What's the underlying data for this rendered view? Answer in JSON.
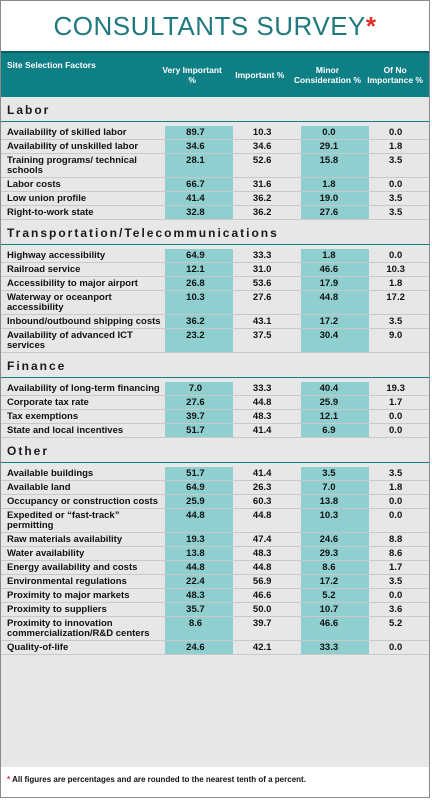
{
  "title": "CONSULTANTS SURVEY",
  "title_mark": "*",
  "colors": {
    "header_bg": "#0f7f86",
    "highlight": "#8fcfd0",
    "title": "#1f7a80",
    "asterisk": "#e0302a"
  },
  "columns": {
    "factor": "Site Selection Factors",
    "very": "Very Important %",
    "important": "Important %",
    "minor": "Minor Consideration %",
    "none": "Of No Importance %"
  },
  "sections": [
    {
      "name": "Labor",
      "rows": [
        {
          "label": "Availability of skilled labor",
          "very": "89.7",
          "important": "10.3",
          "minor": "0.0",
          "none": "0.0",
          "hl": [
            "very"
          ]
        },
        {
          "label": "Availability of unskilled labor",
          "very": "34.6",
          "important": "34.6",
          "minor": "29.1",
          "none": "1.8",
          "hl": [
            "very",
            "minor"
          ]
        },
        {
          "label": "Training programs/ technical schools",
          "very": "28.1",
          "important": "52.6",
          "minor": "15.8",
          "none": "3.5",
          "hl": []
        },
        {
          "label": "Labor costs",
          "very": "66.7",
          "important": "31.6",
          "minor": "1.8",
          "none": "0.0",
          "hl": []
        },
        {
          "label": "Low union profile",
          "very": "41.4",
          "important": "36.2",
          "minor": "19.0",
          "none": "3.5",
          "hl": []
        },
        {
          "label": "Right-to-work state",
          "very": "32.8",
          "important": "36.2",
          "minor": "27.6",
          "none": "3.5",
          "hl": []
        }
      ]
    },
    {
      "name": "Transportation/Telecommunications",
      "rows": [
        {
          "label": "Highway accessibility",
          "very": "64.9",
          "important": "33.3",
          "minor": "1.8",
          "none": "0.0"
        },
        {
          "label": "Railroad service",
          "very": "12.1",
          "important": "31.0",
          "minor": "46.6",
          "none": "10.3"
        },
        {
          "label": "Accessibility to major airport",
          "very": "26.8",
          "important": "53.6",
          "minor": "17.9",
          "none": "1.8"
        },
        {
          "label": "Waterway or oceanport accessibility",
          "very": "10.3",
          "important": "27.6",
          "minor": "44.8",
          "none": "17.2"
        },
        {
          "label": "Inbound/outbound shipping costs",
          "very": "36.2",
          "important": "43.1",
          "minor": "17.2",
          "none": "3.5"
        },
        {
          "label": "Availability of advanced ICT services",
          "very": "23.2",
          "important": "37.5",
          "minor": "30.4",
          "none": "9.0"
        }
      ]
    },
    {
      "name": "Finance",
      "rows": [
        {
          "label": "Availability of long-term financing",
          "very": "7.0",
          "important": "33.3",
          "minor": "40.4",
          "none": "19.3"
        },
        {
          "label": "Corporate tax rate",
          "very": "27.6",
          "important": "44.8",
          "minor": "25.9",
          "none": "1.7"
        },
        {
          "label": "Tax exemptions",
          "very": "39.7",
          "important": "48.3",
          "minor": "12.1",
          "none": "0.0"
        },
        {
          "label": "State and local incentives",
          "very": "51.7",
          "important": "41.4",
          "minor": "6.9",
          "none": "0.0"
        }
      ]
    },
    {
      "name": "Other",
      "rows": [
        {
          "label": "Available buildings",
          "very": "51.7",
          "important": "41.4",
          "minor": "3.5",
          "none": "3.5"
        },
        {
          "label": "Available land",
          "very": "64.9",
          "important": "26.3",
          "minor": "7.0",
          "none": "1.8"
        },
        {
          "label": "Occupancy or construction costs",
          "very": "25.9",
          "important": "60.3",
          "minor": "13.8",
          "none": "0.0"
        },
        {
          "label": "Expedited or “fast-track” permitting",
          "very": "44.8",
          "important": "44.8",
          "minor": "10.3",
          "none": "0.0"
        },
        {
          "label": "Raw materials availability",
          "very": "19.3",
          "important": "47.4",
          "minor": "24.6",
          "none": "8.8"
        },
        {
          "label": "Water availability",
          "very": "13.8",
          "important": "48.3",
          "minor": "29.3",
          "none": "8.6"
        },
        {
          "label": "Energy availability and costs",
          "very": "44.8",
          "important": "44.8",
          "minor": "8.6",
          "none": "1.7"
        },
        {
          "label": "Environmental regulations",
          "very": "22.4",
          "important": "56.9",
          "minor": "17.2",
          "none": "3.5"
        },
        {
          "label": "Proximity to major markets",
          "very": "48.3",
          "important": "46.6",
          "minor": "5.2",
          "none": "0.0"
        },
        {
          "label": "Proximity to suppliers",
          "very": "35.7",
          "important": "50.0",
          "minor": "10.7",
          "none": "3.6"
        },
        {
          "label": "Proximity to innovation commercialization/R&D centers",
          "very": "8.6",
          "important": "39.7",
          "minor": "46.6",
          "none": "5.2"
        },
        {
          "label": "Quality-of-life",
          "very": "24.6",
          "important": "42.1",
          "minor": "33.3",
          "none": "0.0"
        }
      ]
    }
  ],
  "footnote_mark": "*",
  "footnote": "All figures are percentages and are rounded to the nearest tenth of a percent."
}
